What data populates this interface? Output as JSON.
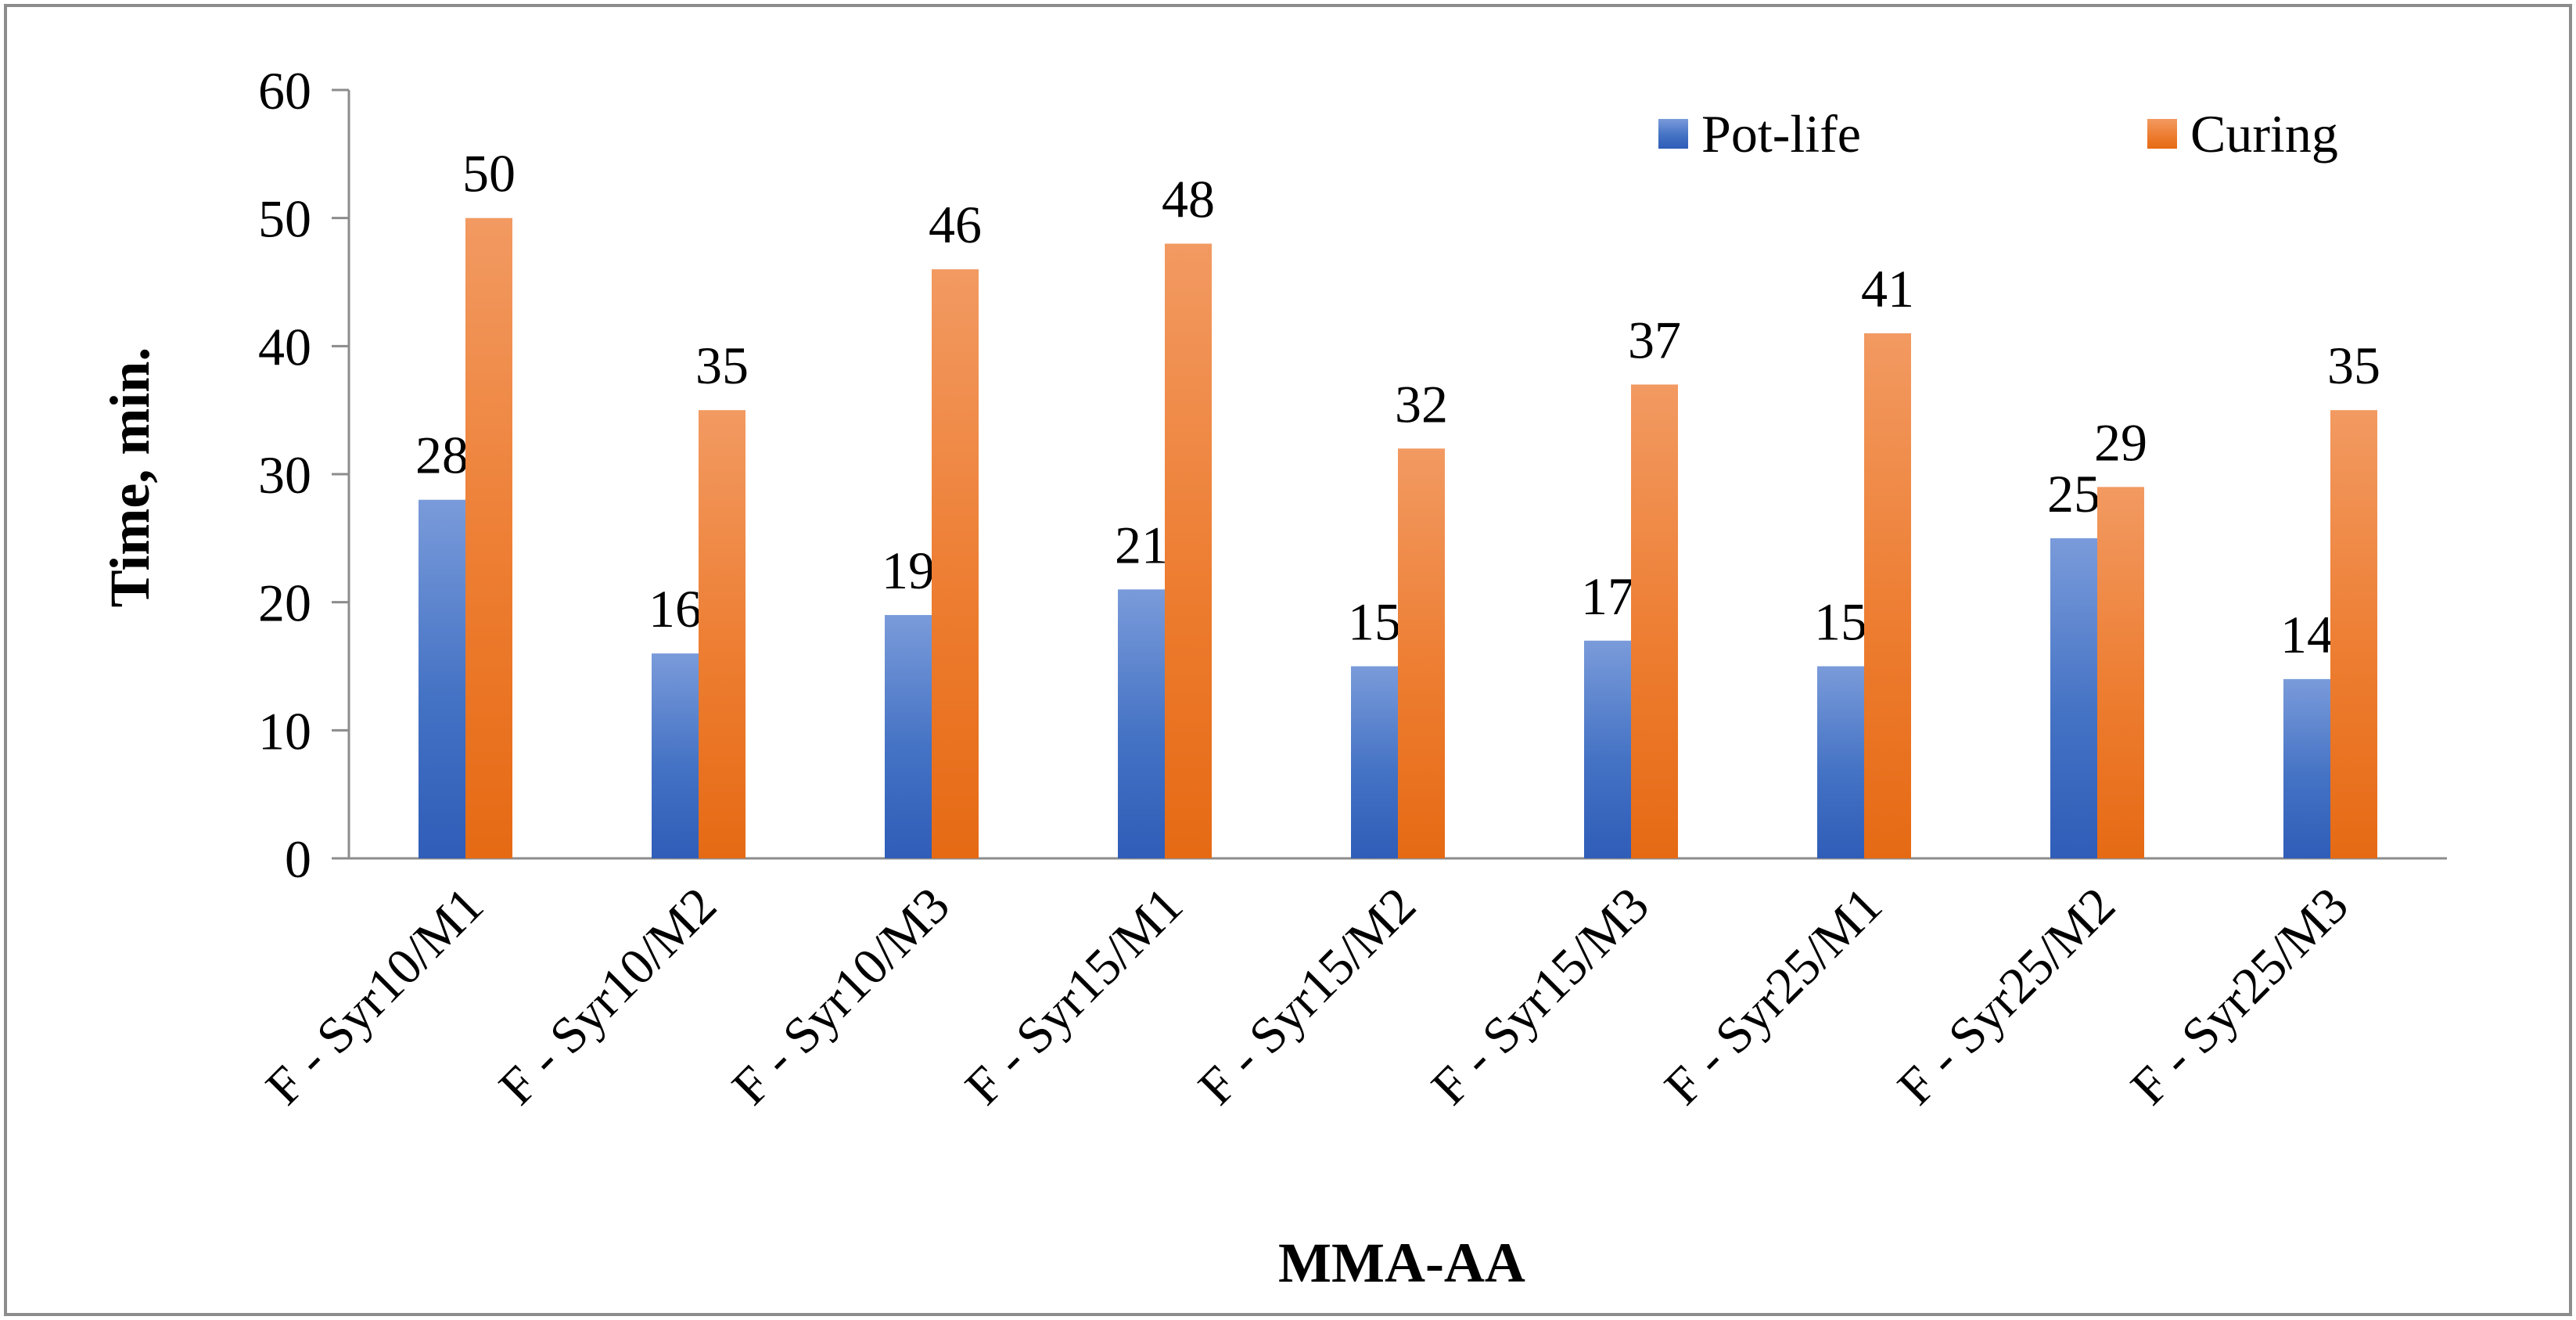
{
  "chart_data": {
    "type": "bar",
    "title": "",
    "xlabel": "MMA-AA",
    "ylabel": "Time, min.",
    "ylim": [
      0,
      60
    ],
    "yticks": [
      0,
      10,
      20,
      30,
      40,
      50,
      60
    ],
    "grid": false,
    "legend_position": "top-right",
    "categories": [
      "F - Syr10/M1",
      "F - Syr10/M2",
      "F - Syr10/M3",
      "F - Syr15/M1",
      "F - Syr15/M2",
      "F - Syr15/M3",
      "F - Syr25/M1",
      "F - Syr25/M2",
      "F - Syr25/M3"
    ],
    "series": [
      {
        "name": "Pot-life",
        "values": [
          28,
          16,
          19,
          21,
          15,
          17,
          15,
          25,
          14
        ],
        "color": "#4472C4",
        "color_light": "#7A9BDA",
        "color_dark": "#2F5DB8"
      },
      {
        "name": "Curing",
        "values": [
          50,
          35,
          46,
          48,
          32,
          37,
          41,
          29,
          35
        ],
        "color": "#ED7D31",
        "color_light": "#F29A62",
        "color_dark": "#E66A14"
      }
    ]
  }
}
